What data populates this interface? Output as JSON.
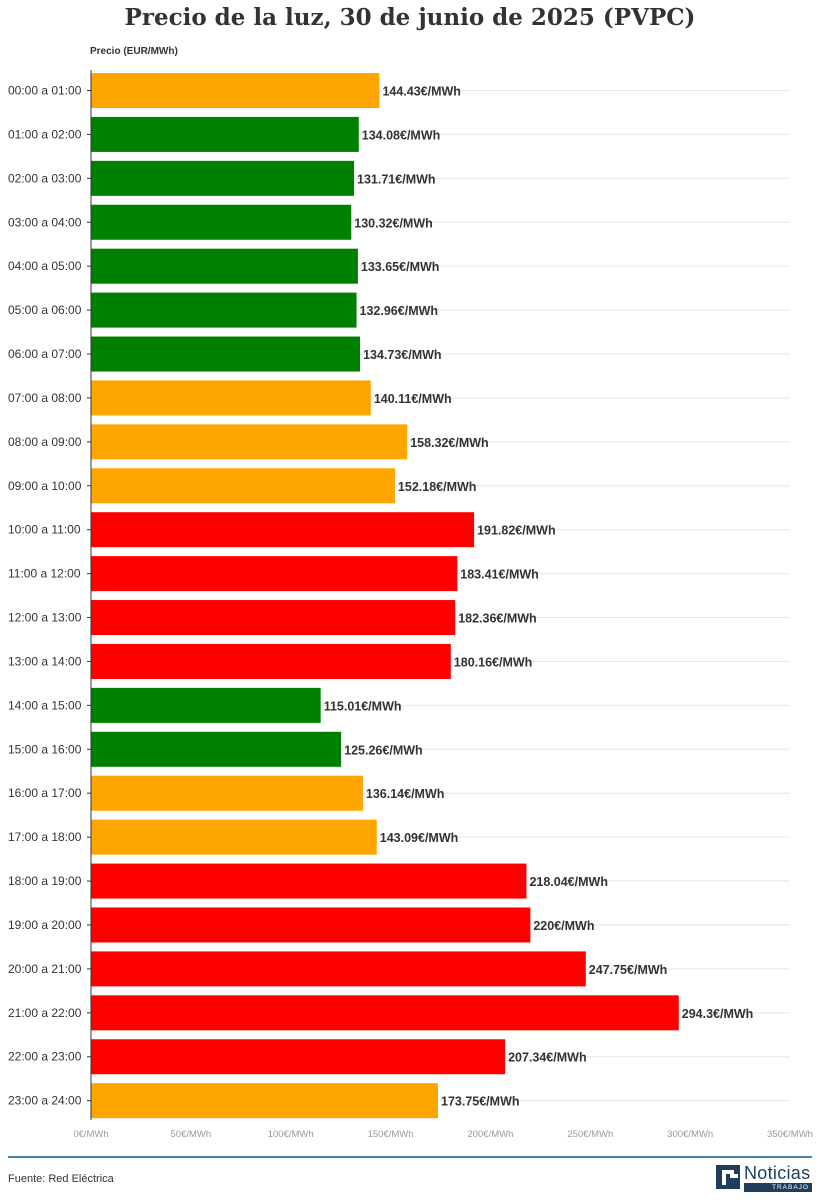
{
  "colors": {
    "low": "#008000",
    "mid": "#ffa500",
    "high": "#ff0000"
  },
  "chart_data": {
    "type": "bar",
    "orientation": "horizontal",
    "title": "Precio de la luz, 30 de junio de 2025 (PVPC)",
    "ylabel": "Precio (EUR/MWh)",
    "xlim": [
      0,
      350
    ],
    "xticks": [
      0,
      50,
      100,
      150,
      200,
      250,
      300,
      350
    ],
    "xtick_labels": [
      "0€/MWh",
      "50€/MWh",
      "100€/MWh",
      "150€/MWh",
      "200€/MWh",
      "250€/MWh",
      "300€/MWh",
      "350€/MWh"
    ],
    "grid": true,
    "categories": [
      "00:00 a 01:00",
      "01:00 a 02:00",
      "02:00 a 03:00",
      "03:00 a 04:00",
      "04:00 a 05:00",
      "05:00 a 06:00",
      "06:00 a 07:00",
      "07:00 a 08:00",
      "08:00 a 09:00",
      "09:00 a 10:00",
      "10:00 a 11:00",
      "11:00 a 12:00",
      "12:00 a 13:00",
      "13:00 a 14:00",
      "14:00 a 15:00",
      "15:00 a 16:00",
      "16:00 a 17:00",
      "17:00 a 18:00",
      "18:00 a 19:00",
      "19:00 a 20:00",
      "20:00 a 21:00",
      "21:00 a 22:00",
      "22:00 a 23:00",
      "23:00 a 24:00"
    ],
    "values": [
      144.43,
      134.08,
      131.71,
      130.32,
      133.65,
      132.96,
      134.73,
      140.11,
      158.32,
      152.18,
      191.82,
      183.41,
      182.36,
      180.16,
      115.01,
      125.26,
      136.14,
      143.09,
      218.04,
      220,
      247.75,
      294.3,
      207.34,
      173.75
    ],
    "value_labels": [
      "144.43€/MWh",
      "134.08€/MWh",
      "131.71€/MWh",
      "130.32€/MWh",
      "133.65€/MWh",
      "132.96€/MWh",
      "134.73€/MWh",
      "140.11€/MWh",
      "158.32€/MWh",
      "152.18€/MWh",
      "191.82€/MWh",
      "183.41€/MWh",
      "182.36€/MWh",
      "180.16€/MWh",
      "115.01€/MWh",
      "125.26€/MWh",
      "136.14€/MWh",
      "143.09€/MWh",
      "218.04€/MWh",
      "220€/MWh",
      "247.75€/MWh",
      "294.3€/MWh",
      "207.34€/MWh",
      "173.75€/MWh"
    ],
    "bar_colors": [
      "mid",
      "low",
      "low",
      "low",
      "low",
      "low",
      "low",
      "mid",
      "mid",
      "mid",
      "high",
      "high",
      "high",
      "high",
      "low",
      "low",
      "mid",
      "mid",
      "high",
      "high",
      "high",
      "high",
      "high",
      "mid"
    ]
  },
  "footer": {
    "source": "Fuente: Red Eléctrica",
    "logo_text": "Noticias",
    "logo_subtext": "TRABAJO"
  }
}
